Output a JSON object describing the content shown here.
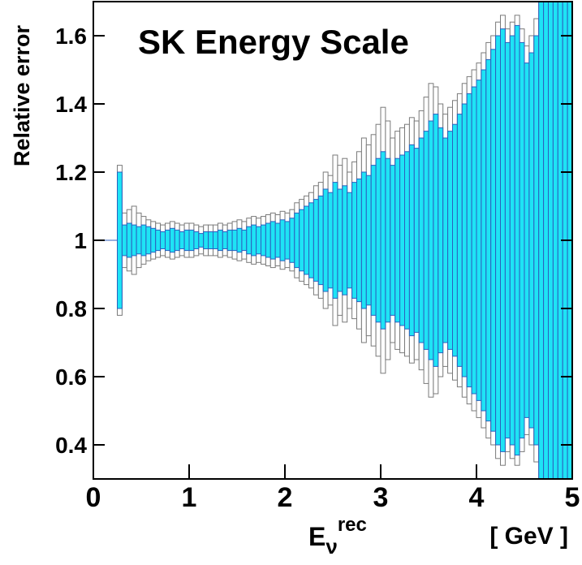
{
  "chart_data": {
    "type": "error_band_histogram",
    "title": "SK Energy Scale",
    "y_label": "Relative error",
    "x_label": {
      "base": "E",
      "sub": "ν",
      "sup": "rec"
    },
    "x_unit": "[ GeV ]",
    "xlim": [
      0,
      5
    ],
    "ylim": [
      0.3,
      1.7
    ],
    "xticks": [
      0,
      1,
      2,
      3,
      4,
      5
    ],
    "yticks": [
      0.4,
      0.6,
      0.8,
      1,
      1.2,
      1.4,
      1.6
    ],
    "bins": [
      0,
      0.05,
      0.1,
      0.15,
      0.2,
      0.25,
      0.3,
      0.35,
      0.4,
      0.45,
      0.5,
      0.55,
      0.6,
      0.65,
      0.7,
      0.75,
      0.8,
      0.85,
      0.9,
      0.95,
      1,
      1.05,
      1.1,
      1.15,
      1.2,
      1.25,
      1.3,
      1.35,
      1.4,
      1.45,
      1.5,
      1.55,
      1.6,
      1.65,
      1.7,
      1.75,
      1.8,
      1.85,
      1.9,
      1.95,
      2,
      2.05,
      2.1,
      2.15,
      2.2,
      2.25,
      2.3,
      2.35,
      2.4,
      2.45,
      2.5,
      2.55,
      2.6,
      2.65,
      2.7,
      2.75,
      2.8,
      2.85,
      2.9,
      2.95,
      3,
      3.05,
      3.1,
      3.15,
      3.2,
      3.25,
      3.3,
      3.35,
      3.4,
      3.45,
      3.5,
      3.55,
      3.6,
      3.65,
      3.7,
      3.75,
      3.8,
      3.85,
      3.9,
      3.95,
      4,
      4.05,
      4.1,
      4.15,
      4.2,
      4.25,
      4.3,
      4.35,
      4.4,
      4.45,
      4.5,
      4.55,
      4.6,
      4.65,
      4.7,
      4.75,
      4.8,
      4.85,
      4.9,
      4.95,
      5
    ],
    "bands": [
      {
        "name": "outer",
        "color": "#ffffff",
        "stroke": "#7a7a7a",
        "upper": [
          1,
          1,
          1,
          1,
          1,
          1.22,
          1.08,
          1.09,
          1.1,
          1.08,
          1.07,
          1.06,
          1.055,
          1.05,
          1.045,
          1.05,
          1.055,
          1.05,
          1.045,
          1.05,
          1.05,
          1.045,
          1.04,
          1.045,
          1.045,
          1.045,
          1.05,
          1.045,
          1.05,
          1.055,
          1.06,
          1.055,
          1.065,
          1.07,
          1.065,
          1.07,
          1.075,
          1.08,
          1.075,
          1.085,
          1.08,
          1.09,
          1.11,
          1.12,
          1.13,
          1.14,
          1.16,
          1.17,
          1.2,
          1.19,
          1.25,
          1.22,
          1.24,
          1.2,
          1.23,
          1.26,
          1.3,
          1.28,
          1.31,
          1.34,
          1.39,
          1.35,
          1.3,
          1.32,
          1.33,
          1.34,
          1.36,
          1.35,
          1.38,
          1.42,
          1.46,
          1.45,
          1.4,
          1.37,
          1.39,
          1.41,
          1.43,
          1.46,
          1.48,
          1.5,
          1.52,
          1.55,
          1.58,
          1.6,
          1.64,
          1.66,
          1.62,
          1.64,
          1.66,
          1.62,
          1.57,
          1.6,
          1.65,
          1.95,
          1.95,
          1.95,
          1.95,
          1.95,
          1.95,
          1.95
        ],
        "lower": [
          1,
          1,
          1,
          1,
          1,
          0.78,
          0.92,
          0.91,
          0.9,
          0.92,
          0.93,
          0.94,
          0.945,
          0.95,
          0.955,
          0.95,
          0.945,
          0.95,
          0.955,
          0.95,
          0.95,
          0.955,
          0.96,
          0.955,
          0.955,
          0.955,
          0.95,
          0.955,
          0.95,
          0.945,
          0.94,
          0.945,
          0.935,
          0.93,
          0.935,
          0.93,
          0.925,
          0.92,
          0.925,
          0.915,
          0.92,
          0.91,
          0.89,
          0.88,
          0.87,
          0.86,
          0.84,
          0.83,
          0.8,
          0.81,
          0.75,
          0.78,
          0.76,
          0.8,
          0.77,
          0.74,
          0.7,
          0.72,
          0.69,
          0.66,
          0.61,
          0.65,
          0.7,
          0.68,
          0.67,
          0.66,
          0.64,
          0.65,
          0.62,
          0.58,
          0.54,
          0.55,
          0.6,
          0.63,
          0.61,
          0.59,
          0.57,
          0.54,
          0.52,
          0.5,
          0.48,
          0.45,
          0.42,
          0.4,
          0.36,
          0.34,
          0.38,
          0.36,
          0.34,
          0.38,
          0.43,
          0.4,
          0.35,
          0.05,
          0.05,
          0.05,
          0.05,
          0.05,
          0.05,
          0.05
        ]
      },
      {
        "name": "inner",
        "color": "#1ee3f5",
        "stroke": "#2c5fbf",
        "upper": [
          1,
          1,
          1,
          1,
          1,
          1.2,
          1.045,
          1.05,
          1.045,
          1.04,
          1.045,
          1.04,
          1.035,
          1.03,
          1.025,
          1.03,
          1.035,
          1.03,
          1.025,
          1.03,
          1.03,
          1.025,
          1.02,
          1.025,
          1.025,
          1.025,
          1.03,
          1.025,
          1.03,
          1.03,
          1.035,
          1.03,
          1.04,
          1.045,
          1.04,
          1.045,
          1.05,
          1.055,
          1.05,
          1.06,
          1.055,
          1.065,
          1.08,
          1.09,
          1.1,
          1.11,
          1.12,
          1.13,
          1.15,
          1.14,
          1.17,
          1.15,
          1.16,
          1.14,
          1.17,
          1.18,
          1.2,
          1.19,
          1.22,
          1.24,
          1.26,
          1.24,
          1.22,
          1.24,
          1.25,
          1.26,
          1.28,
          1.27,
          1.3,
          1.32,
          1.35,
          1.37,
          1.33,
          1.3,
          1.32,
          1.34,
          1.37,
          1.4,
          1.43,
          1.45,
          1.47,
          1.5,
          1.53,
          1.56,
          1.6,
          1.62,
          1.58,
          1.6,
          1.63,
          1.58,
          1.52,
          1.55,
          1.6,
          1.9,
          1.9,
          1.9,
          1.9,
          1.9,
          1.9,
          1.9
        ],
        "lower": [
          1,
          1,
          1,
          1,
          1,
          0.8,
          0.955,
          0.95,
          0.955,
          0.96,
          0.955,
          0.96,
          0.965,
          0.97,
          0.975,
          0.97,
          0.965,
          0.97,
          0.975,
          0.97,
          0.97,
          0.975,
          0.98,
          0.975,
          0.975,
          0.975,
          0.97,
          0.975,
          0.97,
          0.97,
          0.965,
          0.97,
          0.96,
          0.955,
          0.96,
          0.955,
          0.95,
          0.945,
          0.95,
          0.94,
          0.945,
          0.935,
          0.92,
          0.91,
          0.9,
          0.89,
          0.88,
          0.87,
          0.85,
          0.86,
          0.83,
          0.85,
          0.84,
          0.86,
          0.83,
          0.82,
          0.8,
          0.81,
          0.78,
          0.76,
          0.74,
          0.76,
          0.78,
          0.76,
          0.75,
          0.74,
          0.72,
          0.73,
          0.7,
          0.68,
          0.65,
          0.63,
          0.67,
          0.7,
          0.68,
          0.66,
          0.63,
          0.6,
          0.57,
          0.55,
          0.53,
          0.5,
          0.47,
          0.44,
          0.4,
          0.38,
          0.42,
          0.4,
          0.37,
          0.42,
          0.48,
          0.45,
          0.4,
          0.1,
          0.1,
          0.1,
          0.1,
          0.1,
          0.1,
          0.1
        ]
      }
    ]
  }
}
